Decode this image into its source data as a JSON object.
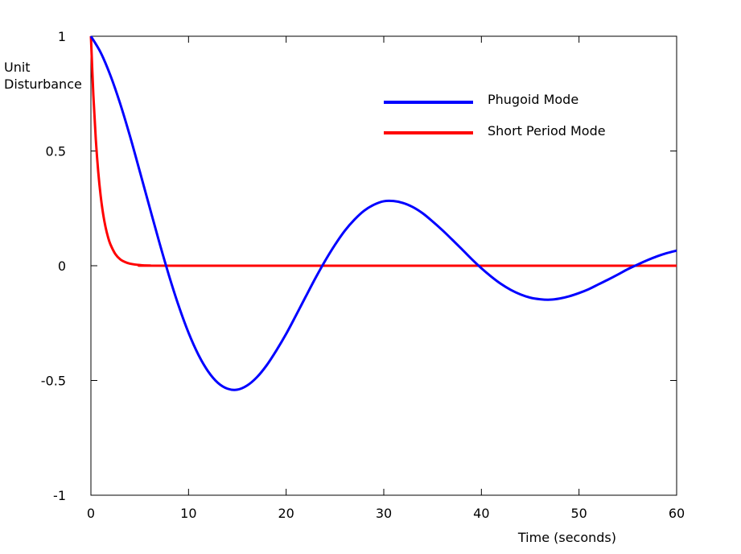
{
  "chart_data": {
    "type": "line",
    "title": "",
    "xlabel": "Time (seconds)",
    "ylabel": [
      "Unit",
      "Disturbance"
    ],
    "xlim": [
      0,
      60
    ],
    "ylim": [
      -1,
      1
    ],
    "xticks": [
      0,
      10,
      20,
      30,
      40,
      50,
      60
    ],
    "xtick_labels": [
      "0",
      "10",
      "20",
      "30",
      "40",
      "50",
      "60"
    ],
    "yticks": [
      1,
      0.5,
      0,
      -0.5,
      -1
    ],
    "ytick_labels": [
      "1",
      "0.5",
      "0",
      "-0.5",
      "-1"
    ],
    "grid": false,
    "legend_position": "top-right",
    "series": [
      {
        "name": "Phugoid Mode",
        "color": "#0000ff",
        "x": [
          0,
          1,
          2,
          3,
          4,
          5,
          6,
          7,
          8,
          9,
          10,
          11,
          12,
          13,
          14,
          15,
          16,
          17,
          18,
          19,
          20,
          21,
          22,
          23,
          24,
          25,
          26,
          27,
          28,
          29,
          30,
          31,
          32,
          33,
          34,
          35,
          36,
          37,
          38,
          39,
          40,
          41,
          42,
          43,
          44,
          45,
          46,
          47,
          48,
          49,
          50,
          51,
          52,
          53,
          54,
          55,
          56,
          57,
          58,
          59,
          60
        ],
        "y": [
          1.0,
          0.929,
          0.829,
          0.706,
          0.565,
          0.412,
          0.257,
          0.103,
          -0.043,
          -0.176,
          -0.292,
          -0.387,
          -0.46,
          -0.51,
          -0.536,
          -0.54,
          -0.522,
          -0.486,
          -0.434,
          -0.369,
          -0.297,
          -0.217,
          -0.135,
          -0.054,
          0.022,
          0.091,
          0.152,
          0.201,
          0.24,
          0.266,
          0.281,
          0.282,
          0.273,
          0.255,
          0.228,
          0.193,
          0.155,
          0.114,
          0.072,
          0.029,
          -0.011,
          -0.047,
          -0.079,
          -0.105,
          -0.125,
          -0.139,
          -0.146,
          -0.148,
          -0.143,
          -0.133,
          -0.119,
          -0.102,
          -0.081,
          -0.06,
          -0.038,
          -0.015,
          0.005,
          0.024,
          0.041,
          0.055,
          0.066
        ]
      },
      {
        "name": "Short Period Mode",
        "color": "#ff0000",
        "x": [
          0,
          0.25,
          0.5,
          0.75,
          1,
          1.25,
          1.5,
          1.75,
          2,
          2.5,
          3,
          3.5,
          4,
          5,
          6,
          10,
          60
        ],
        "y": [
          1.0,
          0.743,
          0.551,
          0.409,
          0.304,
          0.226,
          0.168,
          0.125,
          0.093,
          0.051,
          0.028,
          0.016,
          0.009,
          0.003,
          0.001,
          0,
          0
        ]
      }
    ]
  }
}
